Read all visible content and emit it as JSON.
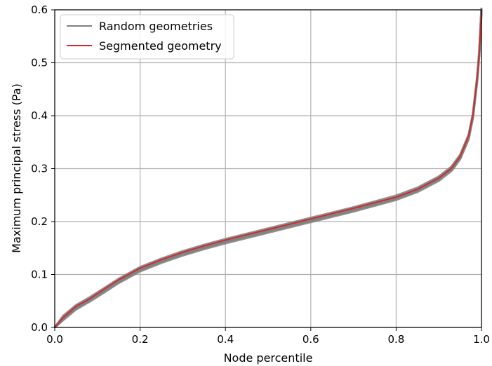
{
  "chart_data": {
    "type": "line",
    "xlabel": "Node percentile",
    "ylabel": "Maximum principal stress (Pa)",
    "xlim": [
      0.0,
      1.0
    ],
    "ylim": [
      0.0,
      0.6
    ],
    "xticks": [
      "0.0",
      "0.2",
      "0.4",
      "0.6",
      "0.8",
      "1.0"
    ],
    "yticks": [
      "0.0",
      "0.1",
      "0.2",
      "0.3",
      "0.4",
      "0.5",
      "0.6"
    ],
    "grid": true,
    "legend_position": "upper-left",
    "series": [
      {
        "name": "Random geometries",
        "color": "#808080",
        "x": [
          0.0,
          0.02,
          0.05,
          0.08,
          0.1,
          0.15,
          0.2,
          0.25,
          0.3,
          0.35,
          0.4,
          0.5,
          0.6,
          0.7,
          0.8,
          0.85,
          0.9,
          0.93,
          0.95,
          0.97,
          0.98,
          0.99,
          0.995,
          1.0
        ],
        "y": [
          0.0,
          0.018,
          0.038,
          0.052,
          0.062,
          0.088,
          0.11,
          0.126,
          0.14,
          0.152,
          0.163,
          0.183,
          0.203,
          0.223,
          0.245,
          0.26,
          0.281,
          0.3,
          0.322,
          0.36,
          0.4,
          0.47,
          0.52,
          0.6
        ]
      },
      {
        "name": "Segmented geometry",
        "color": "#d62728",
        "x": [
          0.0,
          0.02,
          0.05,
          0.08,
          0.1,
          0.15,
          0.2,
          0.25,
          0.3,
          0.35,
          0.4,
          0.5,
          0.6,
          0.7,
          0.8,
          0.85,
          0.9,
          0.93,
          0.95,
          0.97,
          0.98,
          0.99,
          0.995,
          1.0
        ],
        "y": [
          0.0,
          0.019,
          0.04,
          0.053,
          0.064,
          0.09,
          0.112,
          0.128,
          0.142,
          0.154,
          0.165,
          0.185,
          0.205,
          0.225,
          0.246,
          0.261,
          0.282,
          0.301,
          0.323,
          0.362,
          0.402,
          0.47,
          0.52,
          0.6
        ]
      }
    ]
  }
}
